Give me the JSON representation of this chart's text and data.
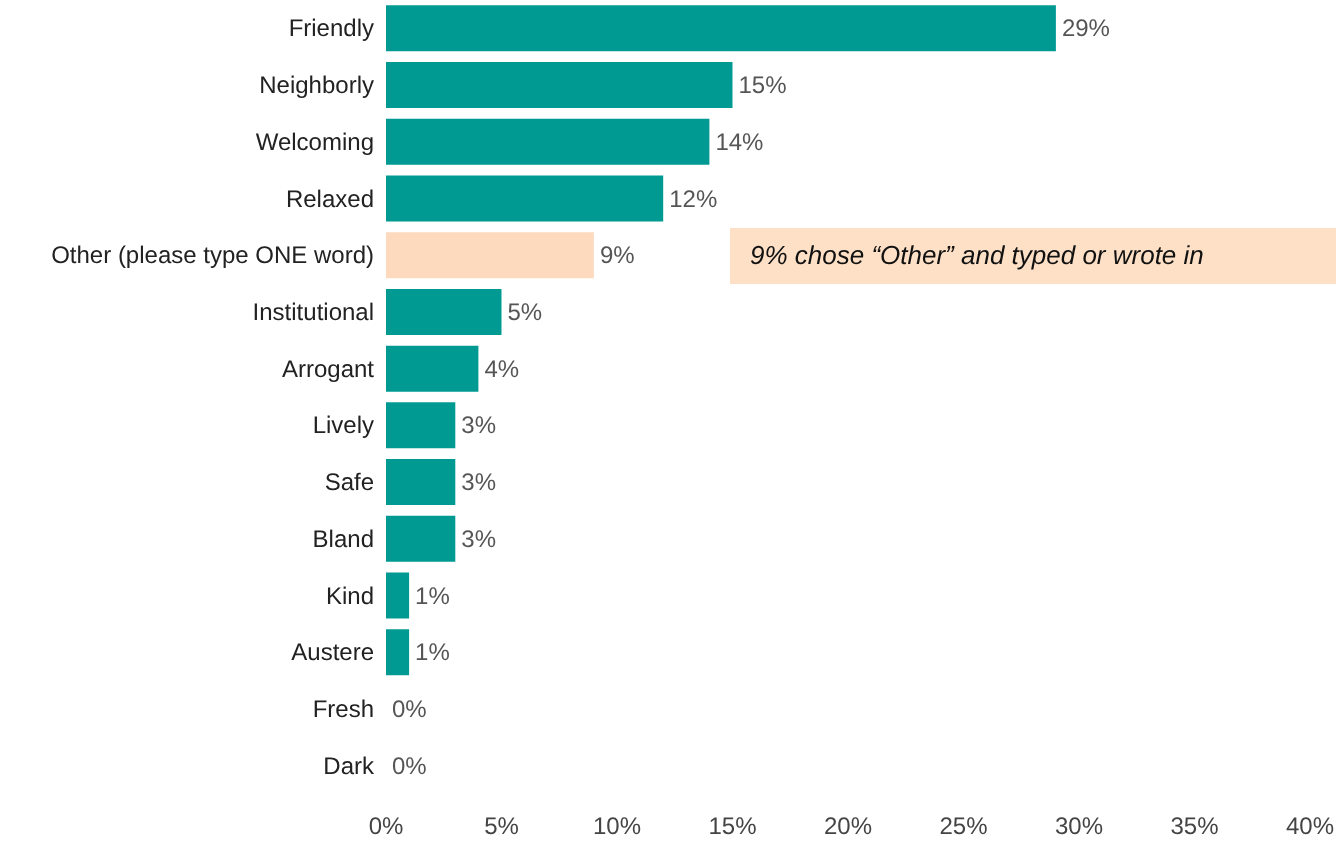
{
  "chart_data": {
    "type": "bar",
    "orientation": "horizontal",
    "categories": [
      "Friendly",
      "Neighborly",
      "Welcoming",
      "Relaxed",
      "Other (please type ONE word)",
      "Institutional",
      "Arrogant",
      "Lively",
      "Safe",
      "Bland",
      "Kind",
      "Austere",
      "Fresh",
      "Dark"
    ],
    "values": [
      29,
      15,
      14,
      12,
      9,
      5,
      4,
      3,
      3,
      3,
      1,
      1,
      0,
      0
    ],
    "colors": [
      "#009a93",
      "#009a93",
      "#009a93",
      "#009a93",
      "#fdd9bd",
      "#009a93",
      "#009a93",
      "#009a93",
      "#009a93",
      "#009a93",
      "#009a93",
      "#009a93",
      "#009a93",
      "#009a93"
    ],
    "value_labels": [
      "29%",
      "15%",
      "14%",
      "12%",
      "9%",
      "5%",
      "4%",
      "3%",
      "3%",
      "3%",
      "1%",
      "1%",
      "0%",
      "0%"
    ],
    "xlim": [
      0,
      40
    ],
    "xticks": [
      {
        "value": 0,
        "label": "0%"
      },
      {
        "value": 5,
        "label": "5%"
      },
      {
        "value": 10,
        "label": "10%"
      },
      {
        "value": 15,
        "label": "15%"
      },
      {
        "value": 20,
        "label": "20%"
      },
      {
        "value": 25,
        "label": "25%"
      },
      {
        "value": 30,
        "label": "30%"
      },
      {
        "value": 35,
        "label": "35%"
      },
      {
        "value": 40,
        "label": "40%"
      }
    ],
    "grid": false,
    "annotations": [
      "9% chose “Other” and typed or wrote in"
    ]
  }
}
